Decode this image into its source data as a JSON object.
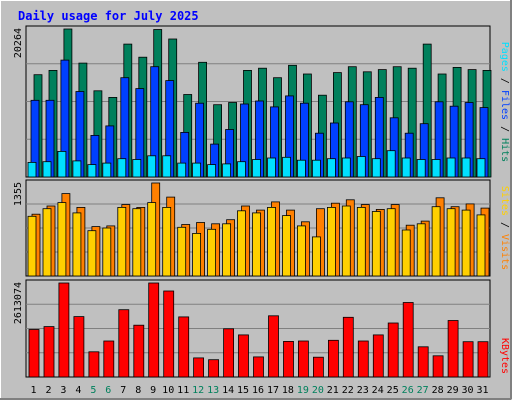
{
  "chart_data": [
    {
      "type": "bar",
      "title": "Daily usage for July 2025",
      "panel": "hits-files-pages",
      "categories": [
        "1",
        "2",
        "3",
        "4",
        "5",
        "6",
        "7",
        "8",
        "9",
        "10",
        "11",
        "12",
        "13",
        "14",
        "15",
        "16",
        "17",
        "18",
        "19",
        "20",
        "21",
        "22",
        "23",
        "24",
        "25",
        "26",
        "27",
        "28",
        "29",
        "30",
        "31"
      ],
      "weekend_days": [
        "5",
        "6",
        "12",
        "13",
        "19",
        "20",
        "26",
        "27"
      ],
      "ylim": [
        0,
        20264
      ],
      "max_label": "20264",
      "series": [
        {
          "name": "Hits",
          "color": "#00805c",
          "values": [
            14000,
            14600,
            20264,
            15600,
            11800,
            10900,
            18200,
            16400,
            20200,
            18900,
            11300,
            15700,
            9900,
            10200,
            14600,
            14900,
            13600,
            15300,
            14100,
            11200,
            14300,
            15100,
            14400,
            14700,
            15100,
            14900,
            18200,
            14100,
            15000,
            14700,
            14600
          ]
        },
        {
          "name": "Files",
          "color": "#0040ff",
          "values": [
            10500,
            10500,
            16000,
            11700,
            5700,
            7000,
            13600,
            12100,
            15100,
            13200,
            6100,
            10100,
            4500,
            6500,
            10000,
            10400,
            9600,
            11100,
            10100,
            6000,
            7400,
            10300,
            9900,
            10900,
            8100,
            6000,
            7300,
            10300,
            9700,
            10200,
            9500
          ]
        },
        {
          "name": "Pages",
          "color": "#00e0ff",
          "values": [
            2000,
            2100,
            3500,
            2200,
            1700,
            1900,
            2500,
            2400,
            2900,
            2900,
            1900,
            1900,
            1700,
            1800,
            2100,
            2400,
            2600,
            2700,
            2300,
            2300,
            2500,
            2600,
            2800,
            2500,
            3600,
            2600,
            2400,
            2400,
            2600,
            2600,
            2500
          ]
        }
      ],
      "legend_labels": [
        "Pages",
        "Files",
        "Hits"
      ]
    },
    {
      "type": "bar",
      "panel": "sites-visits",
      "ylim": [
        0,
        1355
      ],
      "max_label": "1355",
      "series": [
        {
          "name": "Visits",
          "color": "#ff8000",
          "values": [
            900,
            1020,
            1200,
            1000,
            720,
            730,
            1040,
            1000,
            1355,
            1150,
            750,
            780,
            760,
            820,
            1020,
            960,
            1080,
            960,
            790,
            980,
            1060,
            1110,
            1040,
            970,
            1040,
            740,
            800,
            1140,
            1010,
            1050,
            990
          ]
        },
        {
          "name": "Sites",
          "color": "#ffd000",
          "values": [
            870,
            980,
            1070,
            920,
            660,
            700,
            1000,
            980,
            1070,
            1000,
            710,
            620,
            680,
            760,
            950,
            920,
            1000,
            880,
            730,
            570,
            1000,
            1020,
            1000,
            940,
            980,
            670,
            760,
            1010,
            980,
            960,
            890
          ]
        }
      ],
      "legend_labels": [
        "Sites",
        "Visits"
      ]
    },
    {
      "type": "bar",
      "panel": "kbytes",
      "ylim": [
        0,
        2613074
      ],
      "max_label": "2613074",
      "series": [
        {
          "name": "KBytes",
          "color": "#ff0000",
          "values": [
            1320000,
            1400000,
            2613074,
            1680000,
            700000,
            1000000,
            1870000,
            1440000,
            2613074,
            2390000,
            1670000,
            530000,
            480000,
            1340000,
            1170000,
            560000,
            1700000,
            990000,
            1000000,
            550000,
            1020000,
            1660000,
            1000000,
            1170000,
            1500000,
            2070000,
            840000,
            590000,
            1570000,
            980000,
            980000
          ]
        }
      ],
      "legend_labels": [
        "KBytes"
      ]
    }
  ]
}
